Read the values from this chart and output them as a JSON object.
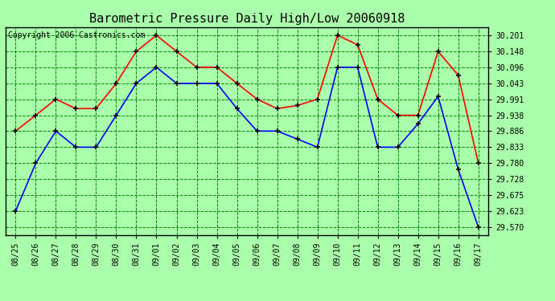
{
  "title": "Barometric Pressure Daily High/Low 20060918",
  "copyright": "Copyright 2006 Castronics.com",
  "x_labels": [
    "08/25",
    "08/26",
    "08/27",
    "08/28",
    "08/29",
    "08/30",
    "08/31",
    "09/01",
    "09/02",
    "09/03",
    "09/04",
    "09/05",
    "09/06",
    "09/07",
    "09/08",
    "09/09",
    "09/10",
    "09/11",
    "09/12",
    "09/13",
    "09/14",
    "09/15",
    "09/16",
    "09/17"
  ],
  "high_values": [
    29.886,
    29.938,
    29.991,
    29.96,
    29.96,
    30.043,
    30.148,
    30.201,
    30.148,
    30.096,
    30.096,
    30.043,
    29.991,
    29.96,
    29.97,
    29.991,
    30.201,
    30.17,
    29.991,
    29.938,
    29.938,
    30.148,
    30.07,
    29.78
  ],
  "low_values": [
    29.623,
    29.78,
    29.886,
    29.833,
    29.833,
    29.938,
    30.043,
    30.096,
    30.043,
    30.043,
    30.043,
    29.96,
    29.886,
    29.886,
    29.86,
    29.833,
    30.096,
    30.096,
    29.833,
    29.833,
    29.91,
    30.0,
    29.76,
    29.57
  ],
  "y_ticks": [
    29.57,
    29.623,
    29.675,
    29.728,
    29.78,
    29.833,
    29.886,
    29.938,
    29.991,
    30.043,
    30.096,
    30.148,
    30.201
  ],
  "high_color": "#ff0000",
  "low_color": "#0000ff",
  "bg_color": "#aaffaa",
  "grid_color": "#008800",
  "line_width": 1.2,
  "marker": "+",
  "marker_color": "#000000",
  "marker_size": 5,
  "ylim_min": 29.545,
  "ylim_max": 30.228,
  "title_fontsize": 11,
  "tick_fontsize": 7,
  "copyright_fontsize": 7
}
